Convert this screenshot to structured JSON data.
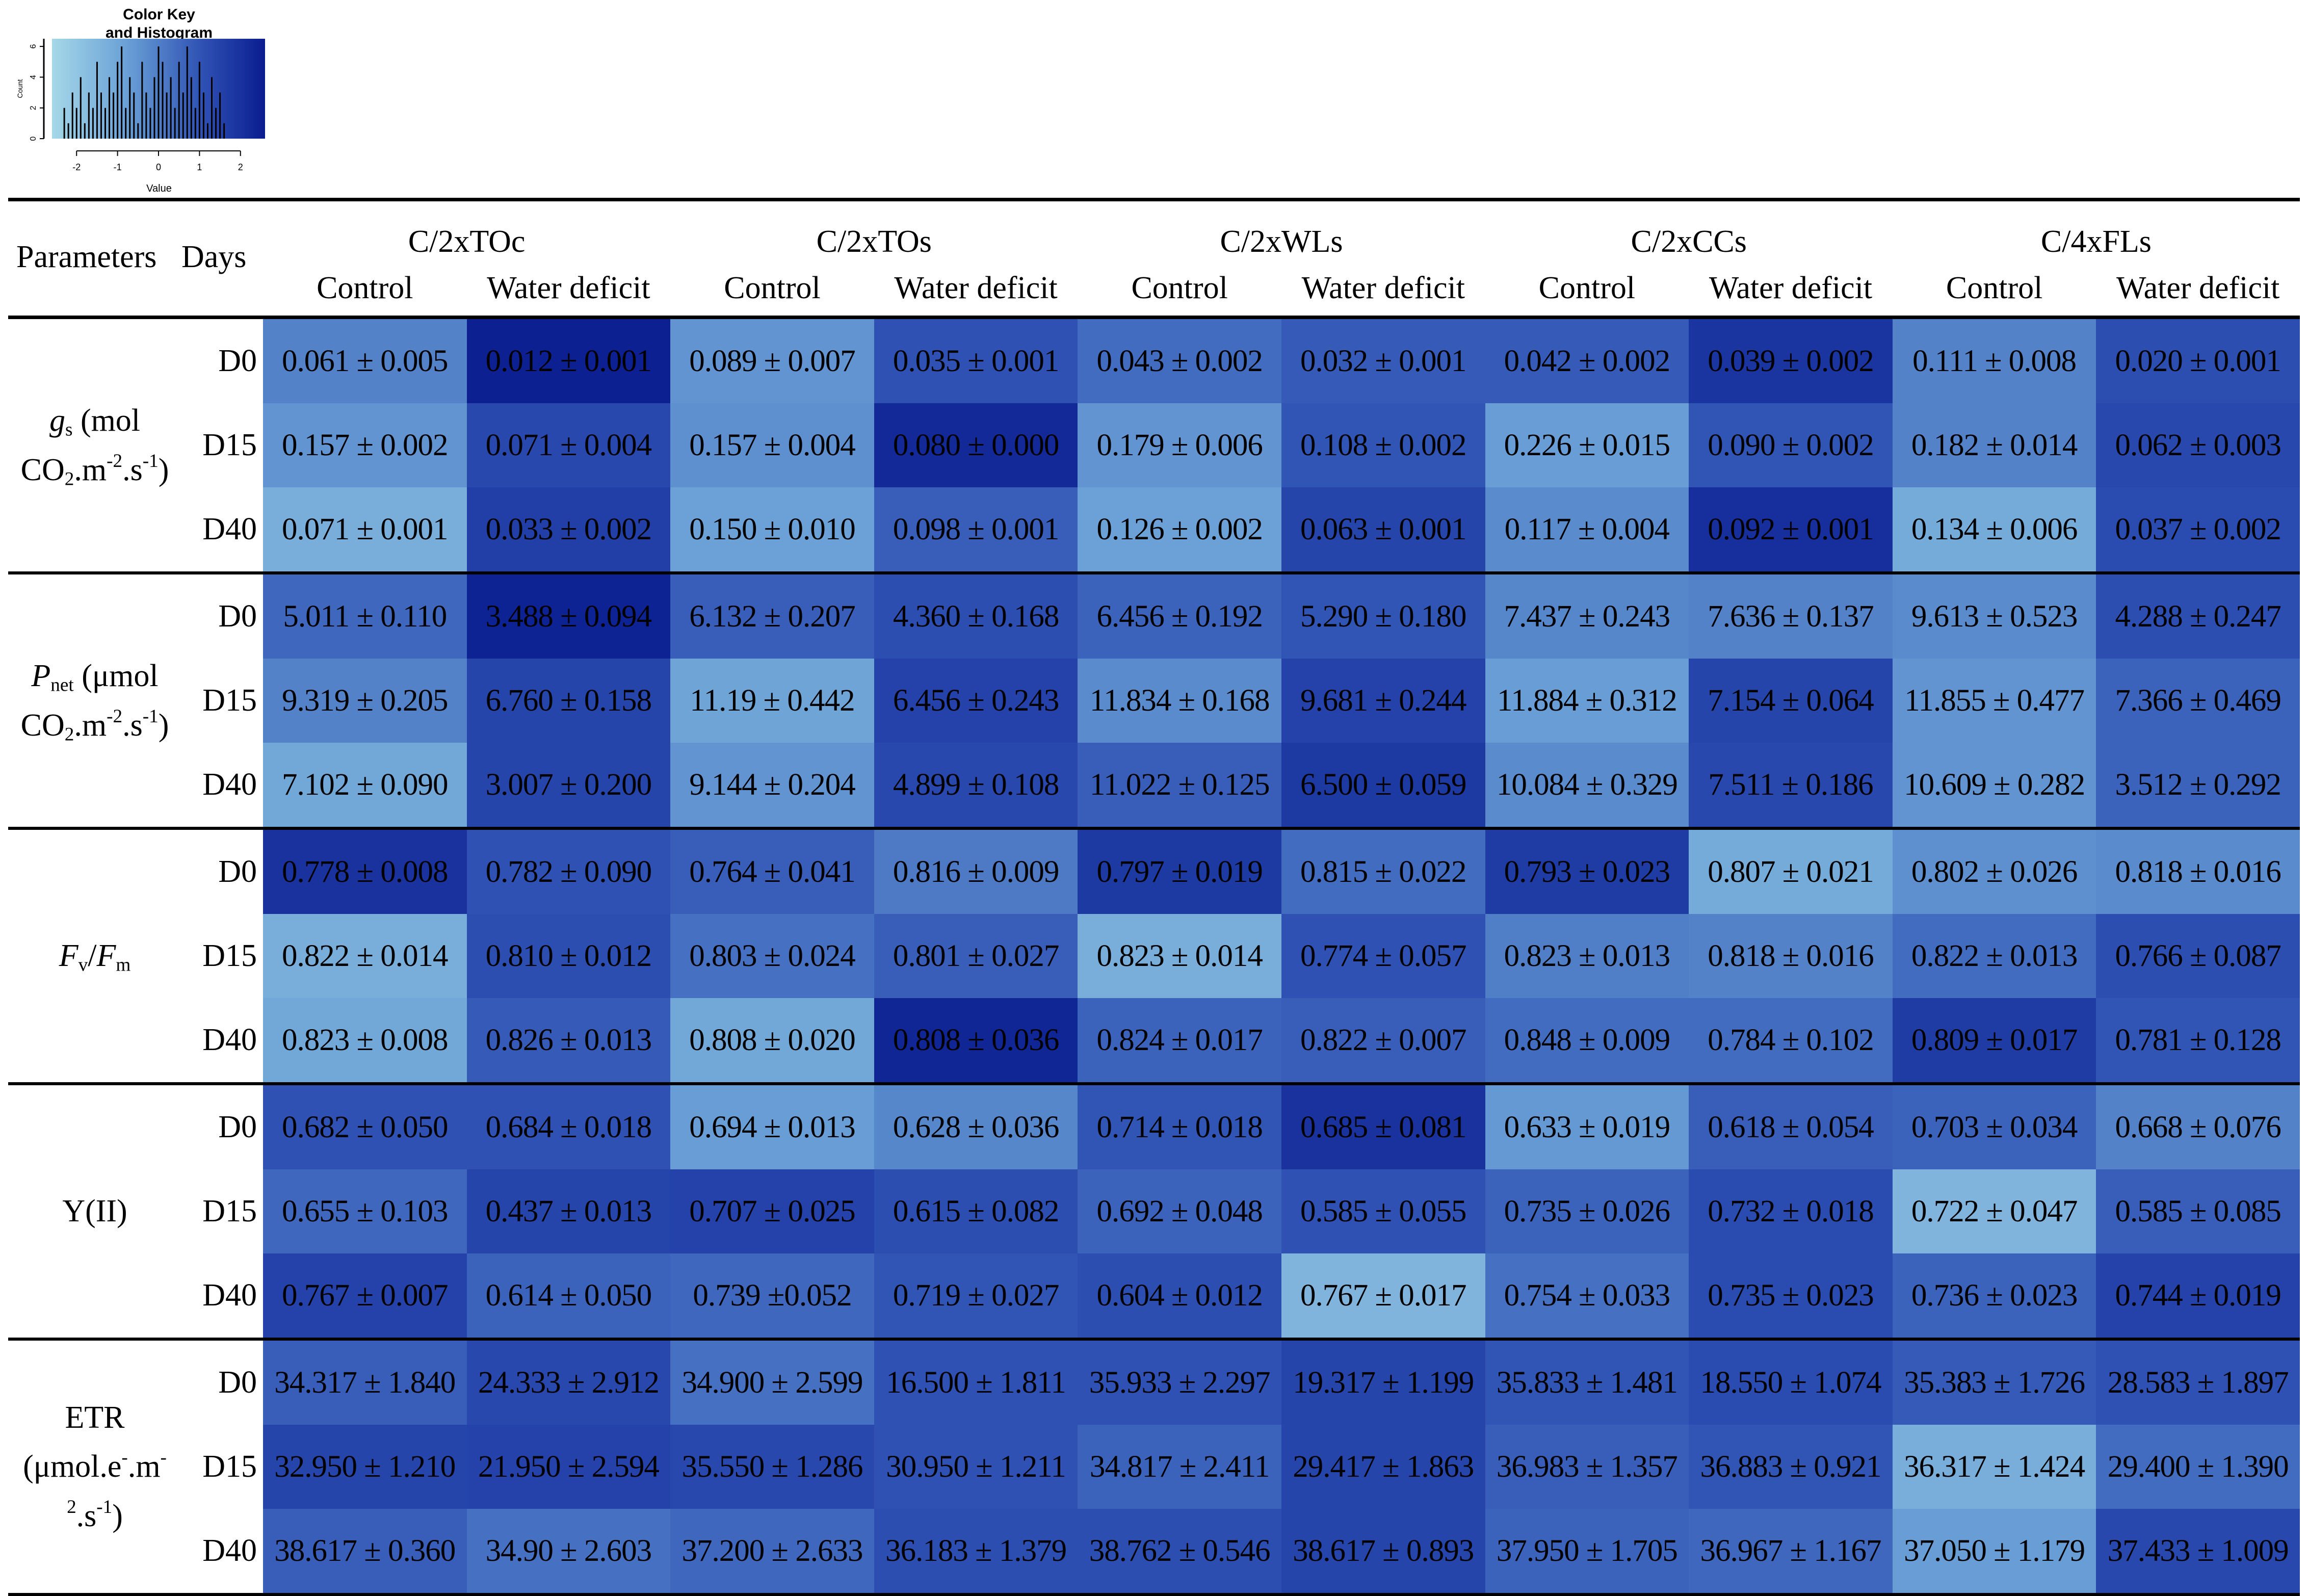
{
  "chart_data": {
    "type": "heatmap",
    "color_key": {
      "title_line1": "Color Key",
      "title_line2": "and Histogram",
      "xlabel": "Value",
      "ylabel": "Count",
      "xticks": [
        "-2",
        "-1",
        "0",
        "1",
        "2"
      ],
      "yticks": [
        "0",
        "2",
        "4",
        "6"
      ],
      "xlim": [
        -2.6,
        2.6
      ],
      "ylim": [
        0,
        6.5
      ],
      "gradient": [
        "#a5d8e8",
        "#6aa0d6",
        "#2f52b4",
        "#0a1d8f"
      ],
      "histogram_counts": [
        2,
        1,
        3,
        2,
        4,
        1,
        3,
        2,
        5,
        3,
        2,
        4,
        3,
        5,
        6,
        2,
        4,
        3,
        1,
        5,
        3,
        2,
        4,
        6,
        5,
        3,
        4,
        2,
        5,
        3,
        6,
        4,
        2,
        5,
        3,
        1,
        4,
        2,
        3,
        1
      ]
    },
    "header": {
      "parameters": "Parameters",
      "days": "Days",
      "genotypes": [
        "C/2xTOc",
        "C/2xTOs",
        "C/2xWLs",
        "C/2xCCs",
        "C/4xFLs"
      ],
      "treatments": [
        "Control",
        "Water deficit"
      ]
    },
    "day_labels": [
      "D0",
      "D15",
      "D40"
    ],
    "parameter_labels": [
      "gs (mol CO2.m-2.s-1)",
      "Pnet (μmol CO2.m-2.s-1)",
      "Fv/Fm",
      "Y(II)",
      "ETR (μmol.e-.m-2.s-1)"
    ],
    "rows": [
      {
        "cells": [
          "0.061 ± 0.005",
          "0.012 ± 0.001",
          "0.089 ± 0.007",
          "0.035 ± 0.001",
          "0.043 ± 0.002",
          "0.032 ± 0.001",
          "0.042 ± 0.002",
          "0.039 ± 0.002",
          "0.111 ± 0.008",
          "0.020 ± 0.001"
        ],
        "z": [
          -0.2,
          2.5,
          -0.6,
          0.9,
          0.3,
          0.7,
          0.7,
          1.8,
          -0.2,
          1.0
        ]
      },
      {
        "cells": [
          "0.157 ± 0.002",
          "0.071 ± 0.004",
          "0.157 ± 0.004",
          "0.080 ± 0.000",
          "0.179 ± 0.006",
          "0.108 ± 0.002",
          "0.226 ± 0.015",
          "0.090 ± 0.002",
          "0.182 ± 0.014",
          "0.062 ± 0.003"
        ],
        "z": [
          -0.6,
          1.2,
          -0.5,
          2.2,
          -0.6,
          0.8,
          -0.8,
          0.8,
          -0.2,
          1.2
        ]
      },
      {
        "cells": [
          "0.071 ± 0.001",
          "0.033 ± 0.002",
          "0.150 ± 0.010",
          "0.098 ± 0.001",
          "0.126 ± 0.002",
          "0.063 ± 0.001",
          "0.117 ± 0.004",
          "0.092 ± 0.001",
          "0.134 ± 0.006",
          "0.037 ± 0.002"
        ],
        "z": [
          -1.3,
          1.5,
          -0.9,
          0.6,
          -0.9,
          1.3,
          -0.4,
          2.0,
          -1.2,
          1.1
        ]
      },
      {
        "cells": [
          "5.011 ± 0.110",
          "3.488 ± 0.094",
          "6.132 ± 0.207",
          "4.360 ± 0.168",
          "6.456 ± 0.192",
          "5.290 ± 0.180",
          "7.437 ± 0.243",
          "7.636 ± 0.137",
          "9.613 ± 0.523",
          "4.288 ± 0.247"
        ],
        "z": [
          0.4,
          2.4,
          0.6,
          1.0,
          0.5,
          0.8,
          -0.3,
          -0.2,
          -0.4,
          1.0
        ]
      },
      {
        "cells": [
          "9.319 ± 0.205",
          "6.760 ± 0.158",
          "11.19 ± 0.442",
          "6.456 ± 0.243",
          "11.834 ± 0.168",
          "9.681 ± 0.244",
          "11.884 ± 0.312",
          "7.154 ± 0.064",
          "11.855 ± 0.477",
          "7.366 ± 0.469"
        ],
        "z": [
          -0.2,
          1.3,
          -1.0,
          1.4,
          -0.4,
          1.4,
          -0.8,
          1.3,
          -0.6,
          0.5
        ]
      },
      {
        "cells": [
          "7.102 ± 0.090",
          "3.007 ± 0.200",
          "9.144 ± 0.204",
          "4.899 ± 0.108",
          "11.022 ± 0.125",
          "6.500 ± 0.059",
          "10.084 ± 0.329",
          "7.511 ± 0.186",
          "10.609 ± 0.282",
          "3.512 ± 0.292"
        ],
        "z": [
          -1.1,
          1.3,
          -0.6,
          1.2,
          0.6,
          1.7,
          -0.4,
          1.2,
          -0.6,
          0.5
        ]
      },
      {
        "cells": [
          "0.778 ± 0.008",
          "0.782 ± 0.090",
          "0.764 ± 0.041",
          "0.816 ± 0.009",
          "0.797 ± 0.019",
          "0.815 ± 0.022",
          "0.793 ± 0.023",
          "0.807 ± 0.021",
          "0.802 ± 0.026",
          "0.818 ± 0.016"
        ],
        "z": [
          1.9,
          0.9,
          0.6,
          0.0,
          1.7,
          0.3,
          1.6,
          -1.2,
          -0.5,
          -0.4
        ]
      },
      {
        "cells": [
          "0.822 ± 0.014",
          "0.810 ± 0.012",
          "0.803 ± 0.024",
          "0.801 ± 0.027",
          "0.823 ± 0.014",
          "0.774 ± 0.057",
          "0.823 ± 0.013",
          "0.818 ± 0.016",
          "0.822 ± 0.013",
          "0.766 ± 0.087"
        ],
        "z": [
          -1.3,
          1.0,
          0.2,
          0.6,
          -1.3,
          0.9,
          -0.1,
          -0.2,
          0.3,
          1.0
        ]
      },
      {
        "cells": [
          "0.823 ± 0.008",
          "0.826 ± 0.013",
          "0.808 ± 0.020",
          "0.808 ± 0.036",
          "0.824 ± 0.017",
          "0.822 ± 0.007",
          "0.848 ± 0.009",
          "0.784 ± 0.102",
          "0.809 ± 0.017",
          "0.781 ± 0.128"
        ],
        "z": [
          -1.1,
          0.7,
          -1.1,
          2.3,
          0.5,
          0.6,
          0.3,
          0.3,
          1.6,
          0.8
        ]
      },
      {
        "cells": [
          "0.682 ± 0.050",
          "0.684 ± 0.018",
          "0.694 ±  0.013",
          "0.628 ± 0.036",
          "0.714 ± 0.018",
          "0.685 ± 0.081",
          "0.633 ± 0.019",
          "0.618 ± 0.054",
          "0.703 ± 0.034",
          "0.668 ± 0.076"
        ],
        "z": [
          0.9,
          0.9,
          -0.8,
          -0.3,
          0.8,
          1.9,
          -0.7,
          0.6,
          0.5,
          -0.2
        ]
      },
      {
        "cells": [
          "0.655 ± 0.103",
          "0.437 ± 0.013",
          "0.707 ± 0.025",
          "0.615 ± 0.082",
          "0.692 ± 0.048",
          "0.585 ± 0.055",
          "0.735 ± 0.026",
          "0.732 ± 0.018",
          "0.722 ± 0.047",
          "0.585 ± 0.085"
        ],
        "z": [
          0.4,
          1.3,
          1.4,
          1.0,
          0.5,
          0.9,
          0.5,
          1.1,
          -1.5,
          0.6
        ]
      },
      {
        "cells": [
          "0.767 ± 0.007",
          "0.614 ± 0.050",
          "0.739 ±0.052",
          "0.719 ± 0.027",
          "0.604 ± 0.012",
          "0.767 ± 0.017",
          "0.754 ± 0.033",
          "0.735 ± 0.023",
          "0.736 ± 0.023",
          "0.744 ± 0.019"
        ],
        "z": [
          1.4,
          0.5,
          0.4,
          0.8,
          1.0,
          -1.5,
          0.2,
          1.1,
          0.5,
          1.4
        ]
      },
      {
        "cells": [
          "34.317 ± 1.840",
          "24.333 ± 2.912",
          "34.900 ± 2.599",
          "16.500 ± 1.811",
          "35.933 ± 2.297",
          "19.317 ± 1.199",
          "35.833 ± 1.481",
          "18.550 ± 1.074",
          "35.383 ± 1.726",
          "28.583 ± 1.897"
        ],
        "z": [
          0.6,
          1.2,
          0.2,
          0.9,
          0.9,
          1.3,
          0.8,
          1.1,
          0.7,
          0.9
        ]
      },
      {
        "cells": [
          "32.950 ± 1.210",
          "21.950 ± 2.594",
          "35.550 ± 1.286",
          "30.950 ± 1.211",
          "34.817 ± 2.411",
          "29.417 ± 1.863",
          "36.983 ± 1.357",
          "36.883 ± 0.921",
          "36.317 ± 1.424",
          "29.400 ± 1.390"
        ],
        "z": [
          1.3,
          1.4,
          1.2,
          0.9,
          0.5,
          1.3,
          0.6,
          0.8,
          -1.3,
          0.3
        ]
      },
      {
        "cells": [
          "38.617 ± 0.360",
          "34.90 ± 2.603",
          "37.200 ± 2.633",
          "36.183 ± 1.379",
          "38.762 ± 0.546",
          "38.617 ± 0.893",
          "37.950 ± 1.705",
          "36.967 ± 1.167",
          "37.050 ± 1.179",
          "37.433 ± 1.009"
        ],
        "z": [
          0.6,
          0.2,
          0.4,
          1.0,
          1.0,
          1.3,
          0.5,
          0.4,
          -0.8,
          1.2
        ]
      }
    ]
  }
}
